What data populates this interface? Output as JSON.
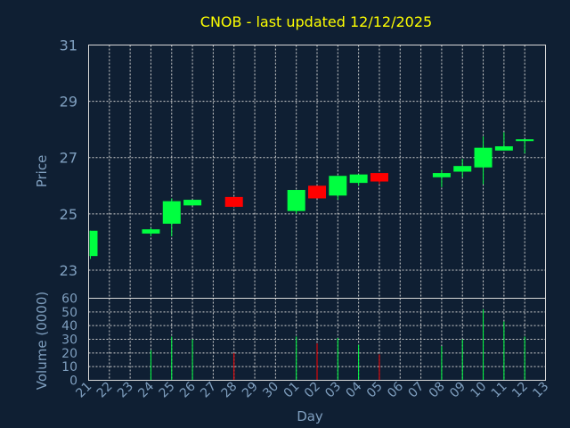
{
  "chart_data": {
    "type": "candlestick",
    "title": "CNOB - last updated 12/12/2025",
    "xlabel": "Day",
    "ylabel_price": "Price",
    "ylabel_volume": "Volume (0000)",
    "ylim_price": [
      22,
      31
    ],
    "yticks_price": [
      "31",
      "29",
      "27",
      "25",
      "23"
    ],
    "ylim_volume": [
      0,
      60
    ],
    "yticks_volume": [
      "60",
      "50",
      "40",
      "30",
      "20",
      "10",
      "0"
    ],
    "x_ticks": [
      "21",
      "22",
      "23",
      "24",
      "25",
      "26",
      "27",
      "28",
      "29",
      "30",
      "01",
      "02",
      "03",
      "04",
      "05",
      "06",
      "07",
      "08",
      "09",
      "10",
      "11",
      "12",
      "13"
    ],
    "grid": true,
    "colors": {
      "up": "#00ff40",
      "down": "#ff0000",
      "title": "#ffff00",
      "axis_text": "#7f9fbf",
      "background": "#0f1f33"
    },
    "candles": [
      {
        "day": "21",
        "open": 23.5,
        "high": 24.4,
        "low": 23.4,
        "close": 24.4,
        "volume": 0
      },
      {
        "day": "24",
        "open": 24.3,
        "high": 24.5,
        "low": 24.2,
        "close": 24.45,
        "volume": 22
      },
      {
        "day": "25",
        "open": 24.65,
        "high": 25.55,
        "low": 24.2,
        "close": 25.45,
        "volume": 32
      },
      {
        "day": "26",
        "open": 25.3,
        "high": 25.5,
        "low": 25.3,
        "close": 25.5,
        "volume": 30
      },
      {
        "day": "28",
        "open": 25.6,
        "high": 25.6,
        "low": 25.25,
        "close": 25.25,
        "volume": 20
      },
      {
        "day": "01",
        "open": 25.1,
        "high": 25.85,
        "low": 25.0,
        "close": 25.85,
        "volume": 32
      },
      {
        "day": "02",
        "open": 26.0,
        "high": 26.0,
        "low": 25.55,
        "close": 25.55,
        "volume": 27
      },
      {
        "day": "03",
        "open": 25.65,
        "high": 26.35,
        "low": 25.5,
        "close": 26.35,
        "volume": 31
      },
      {
        "day": "04",
        "open": 26.1,
        "high": 26.4,
        "low": 26.0,
        "close": 26.4,
        "volume": 26
      },
      {
        "day": "05",
        "open": 26.45,
        "high": 26.45,
        "low": 26.05,
        "close": 26.15,
        "volume": 19
      },
      {
        "day": "08",
        "open": 26.3,
        "high": 26.55,
        "low": 25.95,
        "close": 26.45,
        "volume": 25
      },
      {
        "day": "09",
        "open": 26.5,
        "high": 26.95,
        "low": 26.3,
        "close": 26.7,
        "volume": 30
      },
      {
        "day": "10",
        "open": 26.65,
        "high": 27.75,
        "low": 26.05,
        "close": 27.35,
        "volume": 52
      },
      {
        "day": "11",
        "open": 27.25,
        "high": 27.9,
        "low": 27.25,
        "close": 27.4,
        "volume": 43
      },
      {
        "day": "12",
        "open": 27.6,
        "high": 27.65,
        "low": 27.15,
        "close": 27.65,
        "volume": 32
      }
    ]
  }
}
